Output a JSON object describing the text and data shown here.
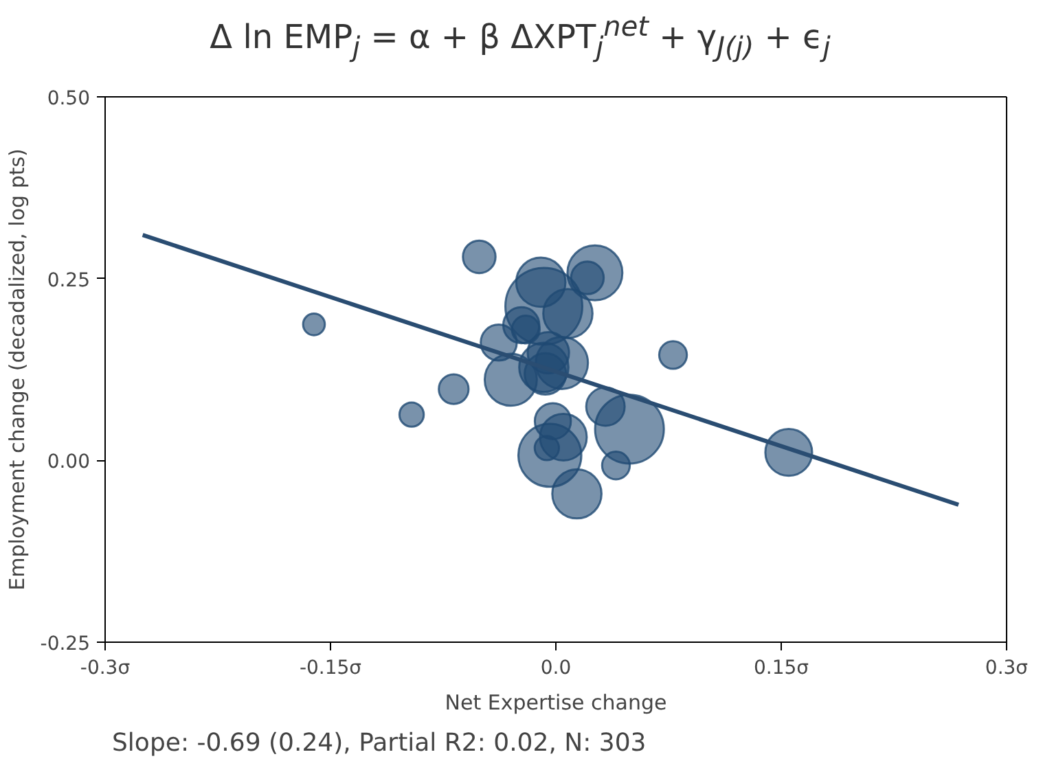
{
  "chart_data": {
    "type": "bubble",
    "title": "Δ ln EMP$_{j}$ = α + β ΔXPT$_{j}$$^{net}$ + γ$_{J(j)}$ + ϵ$_{j}$",
    "xlabel": "Net Expertise change",
    "ylabel": "Employment change (decadalized, log pts)",
    "annotations": [
      "Slope: -0.69 (0.24), Partial R2: 0.02, N:  303"
    ],
    "xlim": [
      -0.3,
      0.3
    ],
    "xticks": [
      {
        "value": -0.3,
        "label": "-0.3σ"
      },
      {
        "value": -0.15,
        "label": "-0.15σ"
      },
      {
        "value": 0,
        "label": "0.0"
      },
      {
        "value": 0.15,
        "label": "0.15σ"
      },
      {
        "value": 0.3,
        "label": "0.3σ"
      }
    ],
    "ylim": [
      -0.25,
      0.5
    ],
    "yticks": [
      {
        "value": -0.25,
        "label": "-0.25"
      },
      {
        "value": 0,
        "label": "0.00"
      },
      {
        "value": 0.25,
        "label": "0.25"
      },
      {
        "value": 0.5,
        "label": "0.50"
      }
    ],
    "grid": false,
    "series": [
      {
        "color": "#1f4a73",
        "x": [
          -0.051,
          0.026,
          0.021,
          -0.01,
          -0.008,
          0.008,
          -0.023,
          -0.02,
          -0.038,
          -0.03,
          -0.005,
          0.004,
          -0.008,
          -0.007,
          0.078,
          -0.068,
          0.033,
          0.049,
          -0.002,
          0.005,
          -0.006,
          -0.004,
          0.04,
          0.014,
          -0.161,
          -0.096,
          0.155
        ],
        "values": [
          0.28,
          0.258,
          0.251,
          0.245,
          0.212,
          0.202,
          0.186,
          0.18,
          0.162,
          0.111,
          0.148,
          0.134,
          0.128,
          0.119,
          0.145,
          0.098,
          0.074,
          0.043,
          0.054,
          0.032,
          0.017,
          0.007,
          -0.007,
          -0.046,
          0.187,
          0.063,
          0.011
        ],
        "sizes": [
          0.18,
          0.51,
          0.18,
          0.41,
          1.0,
          0.41,
          0.22,
          0.13,
          0.22,
          0.46,
          0.29,
          0.46,
          0.41,
          0.29,
          0.13,
          0.15,
          0.25,
          0.8,
          0.22,
          0.37,
          0.1,
          0.67,
          0.13,
          0.41,
          0.08,
          0.1,
          0.37
        ]
      },
      {
        "type": "line",
        "color": "#2a4d72",
        "x": [
          -0.275,
          0.268
        ],
        "values": [
          0.31,
          -0.061
        ]
      }
    ]
  }
}
